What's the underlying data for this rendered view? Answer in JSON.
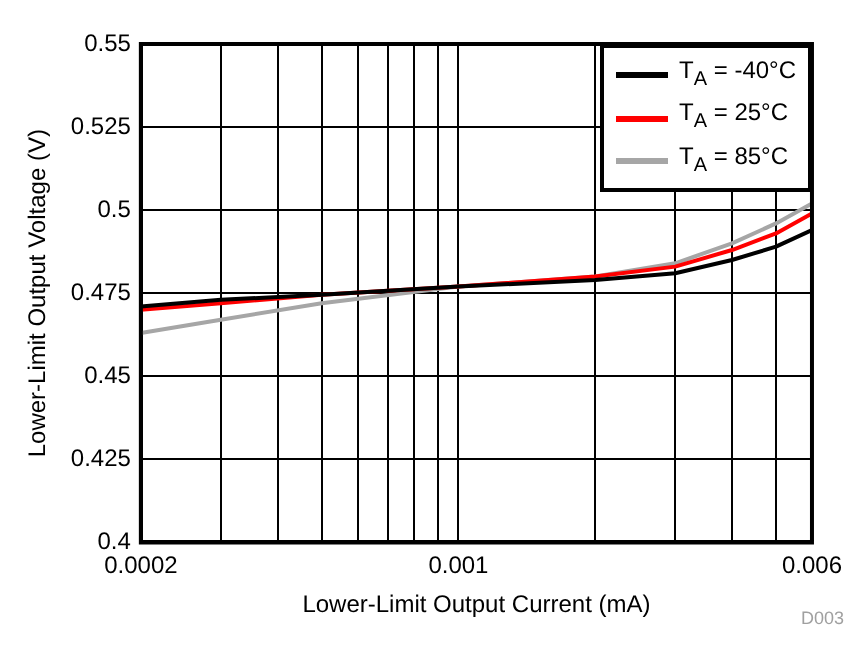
{
  "chart_data": {
    "type": "line",
    "xlabel": "Lower-Limit Output Current (mA)",
    "ylabel": "Lower-Limit Output Voltage (V)",
    "x": [
      0.0002,
      0.0003,
      0.0005,
      0.001,
      0.002,
      0.003,
      0.004,
      0.005,
      0.006
    ],
    "series": [
      {
        "name": "T$_{A}$ = -40°C",
        "color": "#000000",
        "values": [
          0.471,
          0.473,
          0.4745,
          0.477,
          0.479,
          0.481,
          0.485,
          0.489,
          0.494
        ]
      },
      {
        "name": "T$_{A}$ = 25°C",
        "color": "#ff0000",
        "values": [
          0.47,
          0.472,
          0.4745,
          0.477,
          0.48,
          0.483,
          0.488,
          0.493,
          0.499
        ]
      },
      {
        "name": "T$_{A}$ = 85°C",
        "color": "#a6a6a6",
        "values": [
          0.463,
          0.467,
          0.472,
          0.477,
          0.48,
          0.484,
          0.49,
          0.496,
          0.502
        ]
      }
    ],
    "xlim": [
      0.0002,
      0.006
    ],
    "xticks": [
      0.0002,
      {
        "value": 0.0003,
        "label": null
      },
      {
        "value": 0.0004,
        "label": null
      },
      {
        "value": 0.0005,
        "label": null
      },
      {
        "value": 0.0006,
        "label": null
      },
      {
        "value": 0.0007,
        "label": null
      },
      {
        "value": 0.0008,
        "label": null
      },
      {
        "value": 0.0009,
        "label": null
      },
      0.001,
      {
        "value": 0.002,
        "label": null
      },
      {
        "value": 0.003,
        "label": null
      },
      {
        "value": 0.004,
        "label": null
      },
      {
        "value": 0.005,
        "label": null
      },
      0.006
    ],
    "ylim": [
      0.4,
      0.55
    ],
    "yticks": [
      0.4,
      0.425,
      0.45,
      0.475,
      0.5,
      0.525,
      0.55
    ],
    "log": "x",
    "grid": true,
    "legend": "top right",
    "marker": "none",
    "line_style": "solid",
    "annotations": [
      "D003"
    ]
  }
}
